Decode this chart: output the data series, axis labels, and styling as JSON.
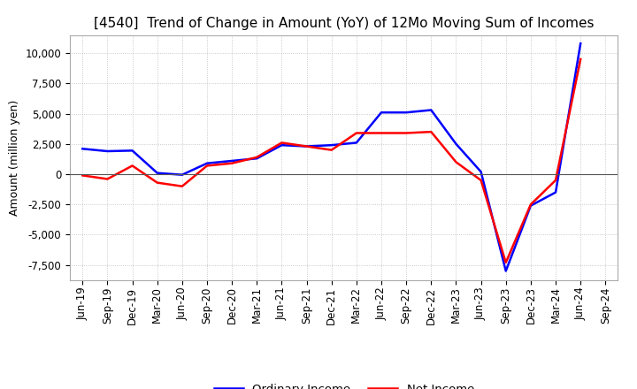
{
  "title": "[4540]  Trend of Change in Amount (YoY) of 12Mo Moving Sum of Incomes",
  "ylabel": "Amount (million yen)",
  "background_color": "#ffffff",
  "grid_color": "#bbbbbb",
  "x_labels": [
    "Jun-19",
    "Sep-19",
    "Dec-19",
    "Mar-20",
    "Jun-20",
    "Sep-20",
    "Dec-20",
    "Mar-21",
    "Jun-21",
    "Sep-21",
    "Dec-21",
    "Mar-22",
    "Jun-22",
    "Sep-22",
    "Dec-22",
    "Mar-23",
    "Jun-23",
    "Sep-23",
    "Dec-23",
    "Mar-24",
    "Jun-24",
    "Sep-24"
  ],
  "ordinary_income": [
    2100,
    1900,
    1950,
    100,
    -50,
    900,
    1100,
    1300,
    2400,
    2300,
    2400,
    2600,
    5100,
    5100,
    5300,
    2500,
    200,
    -8000,
    -2600,
    -1500,
    10800,
    null
  ],
  "net_income": [
    -100,
    -400,
    700,
    -700,
    -1000,
    700,
    900,
    1400,
    2600,
    2300,
    2000,
    3400,
    3400,
    3400,
    3500,
    1000,
    -500,
    -7300,
    -2500,
    -500,
    9500,
    null
  ],
  "ordinary_color": "#0000ff",
  "net_color": "#ff0000",
  "ylim": [
    -8750,
    11500
  ],
  "yticks": [
    -7500,
    -5000,
    -2500,
    0,
    2500,
    5000,
    7500,
    10000
  ],
  "title_fontsize": 11,
  "legend_fontsize": 9.5,
  "axis_fontsize": 8.5,
  "ylabel_fontsize": 9
}
